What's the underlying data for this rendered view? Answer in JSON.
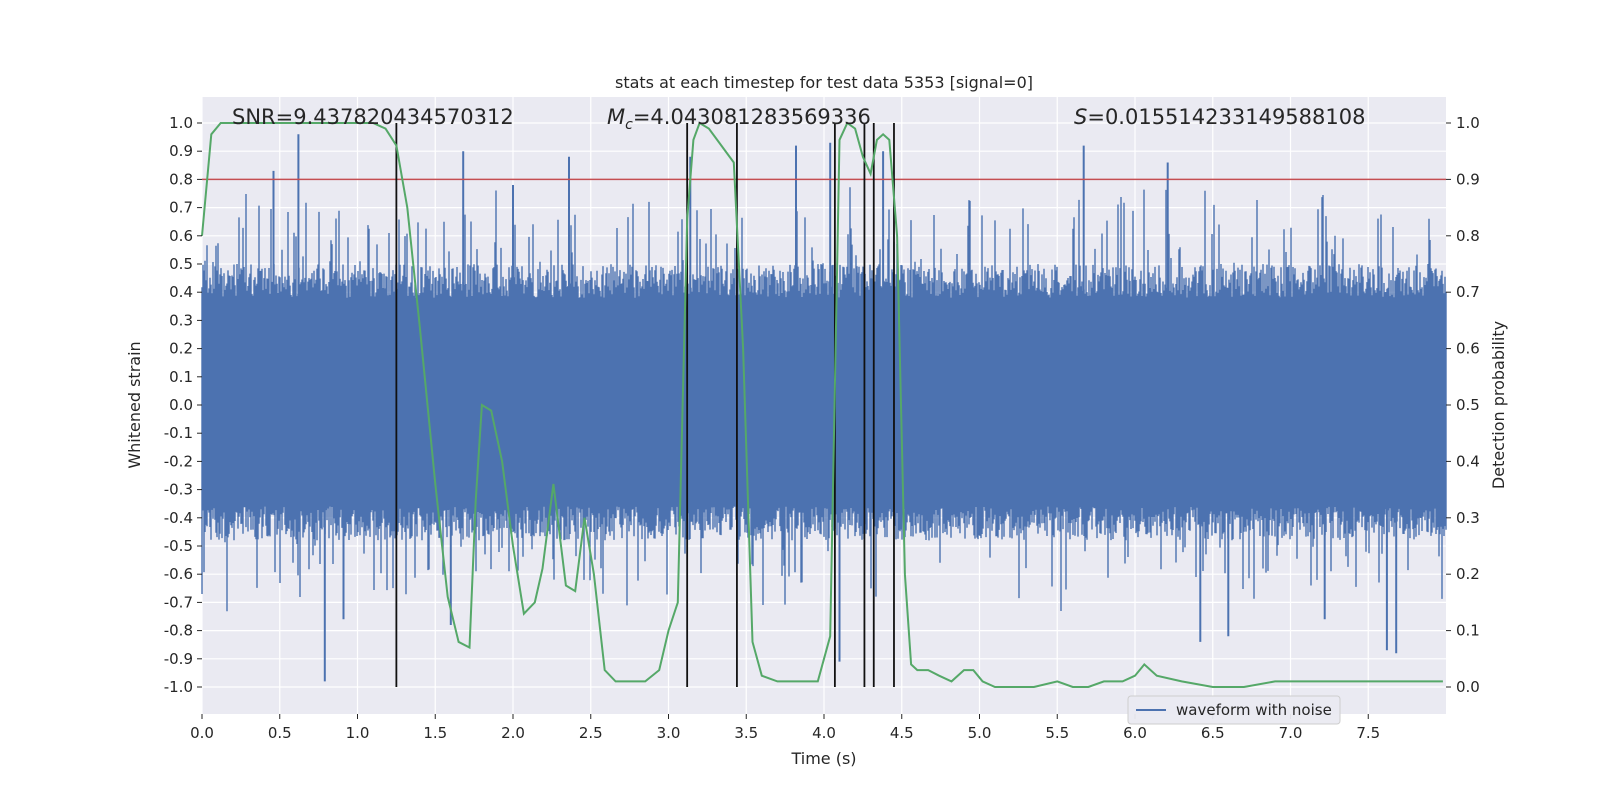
{
  "chart_data": {
    "type": "line",
    "title": "stats at each timestep for test data 5353 [signal=0]",
    "xlabel": "Time (s)",
    "ylabel_left": "Whitened strain",
    "ylabel_right": "Detection probability",
    "xlim": [
      0,
      8
    ],
    "ylim_left": [
      -1.07,
      1.1
    ],
    "ylim_right": [
      -0.04,
      1.04
    ],
    "x_ticks": [
      "0.0",
      "0.5",
      "1.0",
      "1.5",
      "2.0",
      "2.5",
      "3.0",
      "3.5",
      "4.0",
      "4.5",
      "5.0",
      "5.5",
      "6.0",
      "6.5",
      "7.0",
      "7.5"
    ],
    "y_left_ticks": [
      "-1.0",
      "-0.9",
      "-0.8",
      "-0.7",
      "-0.6",
      "-0.5",
      "-0.4",
      "-0.3",
      "-0.2",
      "-0.1",
      "0.0",
      "0.1",
      "0.2",
      "0.3",
      "0.4",
      "0.5",
      "0.6",
      "0.7",
      "0.8",
      "0.9",
      "1.0"
    ],
    "y_right_ticks": [
      "0.0",
      "0.1",
      "0.2",
      "0.3",
      "0.4",
      "0.5",
      "0.6",
      "0.7",
      "0.8",
      "0.9",
      "1.0"
    ],
    "grid": true,
    "legend_position": "bottom-right",
    "legend": [
      "waveform with noise"
    ],
    "annotations": {
      "snr": "SNR=9.437820434570312",
      "mc_symbol": "M",
      "mc_subscript": "c",
      "mc_value": "=4.043081283569336",
      "s_symbol": "S",
      "s_value": "=0.015514233149588108"
    },
    "threshold": {
      "value": 0.9,
      "axis": "right",
      "color": "#c44e52"
    },
    "vertical_markers": [
      1.25,
      3.12,
      3.44,
      4.07,
      4.26,
      4.32,
      4.45
    ],
    "vertical_marker_range": [
      0.0,
      1.0
    ],
    "waveform": {
      "name": "waveform with noise",
      "color": "#4c72b0",
      "typical_amplitude": [
        -0.38,
        0.4
      ],
      "peaks": [
        {
          "x": 0.46,
          "y": 0.83
        },
        {
          "x": 0.62,
          "y": 0.96
        },
        {
          "x": 0.79,
          "y": -0.98
        },
        {
          "x": 0.91,
          "y": -0.76
        },
        {
          "x": 1.68,
          "y": 0.9
        },
        {
          "x": 1.6,
          "y": -0.78
        },
        {
          "x": 2.36,
          "y": 0.88
        },
        {
          "x": 3.14,
          "y": 0.88
        },
        {
          "x": 3.82,
          "y": 0.92
        },
        {
          "x": 4.04,
          "y": 0.93
        },
        {
          "x": 4.38,
          "y": 0.9
        },
        {
          "x": 4.1,
          "y": -0.91
        },
        {
          "x": 5.67,
          "y": 0.92
        },
        {
          "x": 6.21,
          "y": 0.86
        },
        {
          "x": 6.42,
          "y": -0.84
        },
        {
          "x": 6.6,
          "y": -0.82
        },
        {
          "x": 7.22,
          "y": -0.76
        },
        {
          "x": 7.62,
          "y": -0.87
        },
        {
          "x": 7.68,
          "y": -0.88
        },
        {
          "x": 2.0,
          "y": 0.78
        }
      ]
    },
    "probability": {
      "name": "detection probability",
      "color": "#55a868",
      "x": [
        0.0,
        0.06,
        0.12,
        0.25,
        0.5,
        0.75,
        1.0,
        1.1,
        1.18,
        1.25,
        1.32,
        1.4,
        1.5,
        1.58,
        1.65,
        1.72,
        1.76,
        1.8,
        1.86,
        1.93,
        2.0,
        2.07,
        2.14,
        2.19,
        2.26,
        2.34,
        2.4,
        2.46,
        2.52,
        2.59,
        2.66,
        2.75,
        2.85,
        2.94,
        3.0,
        3.06,
        3.12,
        3.16,
        3.2,
        3.26,
        3.34,
        3.42,
        3.48,
        3.54,
        3.6,
        3.7,
        3.8,
        3.88,
        3.96,
        4.04,
        4.1,
        4.15,
        4.2,
        4.25,
        4.3,
        4.34,
        4.38,
        4.42,
        4.47,
        4.52,
        4.56,
        4.6,
        4.67,
        4.74,
        4.82,
        4.9,
        4.96,
        5.02,
        5.1,
        5.2,
        5.35,
        5.5,
        5.6,
        5.7,
        5.8,
        5.92,
        6.0,
        6.06,
        6.14,
        6.3,
        6.5,
        6.7,
        6.9,
        7.0,
        7.2,
        7.4,
        7.6,
        7.75,
        7.85,
        7.92,
        7.98
      ],
      "y": [
        0.8,
        0.98,
        1.0,
        1.0,
        1.0,
        1.0,
        1.0,
        1.0,
        0.99,
        0.96,
        0.85,
        0.64,
        0.36,
        0.16,
        0.08,
        0.07,
        0.33,
        0.5,
        0.49,
        0.4,
        0.25,
        0.13,
        0.15,
        0.21,
        0.36,
        0.18,
        0.17,
        0.3,
        0.2,
        0.03,
        0.01,
        0.01,
        0.01,
        0.03,
        0.1,
        0.15,
        0.83,
        0.97,
        1.0,
        0.99,
        0.96,
        0.93,
        0.6,
        0.08,
        0.02,
        0.01,
        0.01,
        0.01,
        0.01,
        0.09,
        0.97,
        1.0,
        0.99,
        0.94,
        0.91,
        0.97,
        0.98,
        0.97,
        0.8,
        0.2,
        0.04,
        0.03,
        0.03,
        0.02,
        0.01,
        0.03,
        0.03,
        0.01,
        0.0,
        0.0,
        0.0,
        0.01,
        0.0,
        0.0,
        0.01,
        0.01,
        0.02,
        0.04,
        0.02,
        0.01,
        0.0,
        0.0,
        0.01,
        0.01,
        0.01,
        0.01,
        0.01,
        0.01,
        0.01,
        0.01,
        0.01
      ]
    }
  }
}
